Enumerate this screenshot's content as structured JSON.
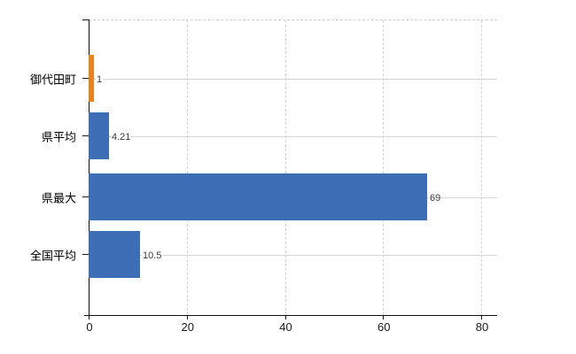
{
  "chart_data": {
    "type": "bar",
    "orientation": "horizontal",
    "title": "",
    "xlabel": "",
    "ylabel": "",
    "categories": [
      "御代田町",
      "県平均",
      "県最大",
      "全国平均"
    ],
    "values": [
      1,
      4.21,
      69,
      10.5
    ],
    "value_labels": [
      "1",
      "4.21",
      "69",
      "10.5"
    ],
    "bar_colors": [
      "#e8821e",
      "#3d6eb5",
      "#3d6eb5",
      "#3d6eb5"
    ],
    "x_ticks": [
      0,
      20,
      40,
      60,
      80
    ],
    "x_tick_labels": [
      "0",
      "20",
      "40",
      "60",
      "80"
    ],
    "xlim": [
      0,
      83
    ],
    "grid": true,
    "legend": false,
    "colors": {
      "default_bar": "#3d6eb5",
      "highlight_bar": "#e8821e",
      "grid_line": "#d6d6d6",
      "axis_line": "#111111",
      "background": "#ffffff"
    }
  }
}
